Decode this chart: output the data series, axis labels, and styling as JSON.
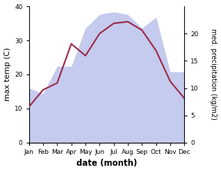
{
  "months": [
    "Jan",
    "Feb",
    "Mar",
    "Apr",
    "May",
    "Jun",
    "Jul",
    "Aug",
    "Sep",
    "Oct",
    "Nov",
    "Dec"
  ],
  "max_temp": [
    10.5,
    15.5,
    17.5,
    29.0,
    25.5,
    32.0,
    35.0,
    35.5,
    33.0,
    27.0,
    18.0,
    13.0
  ],
  "precipitation": [
    10.0,
    9.0,
    14.0,
    14.0,
    21.0,
    23.5,
    24.0,
    23.5,
    21.0,
    23.0,
    13.0,
    13.0
  ],
  "temp_color": "#9e2d4a",
  "precip_fill_color": "#c5cbee",
  "temp_ylim": [
    0,
    40
  ],
  "precip_ylim": [
    0,
    25
  ],
  "precip_yticks": [
    0,
    5,
    10,
    15,
    20
  ],
  "temp_yticks": [
    0,
    10,
    20,
    30,
    40
  ],
  "xlabel": "date (month)",
  "ylabel_left": "max temp (C)",
  "ylabel_right": "med. precipitation (kg/m2)",
  "figsize": [
    3.18,
    2.47
  ],
  "dpi": 100
}
